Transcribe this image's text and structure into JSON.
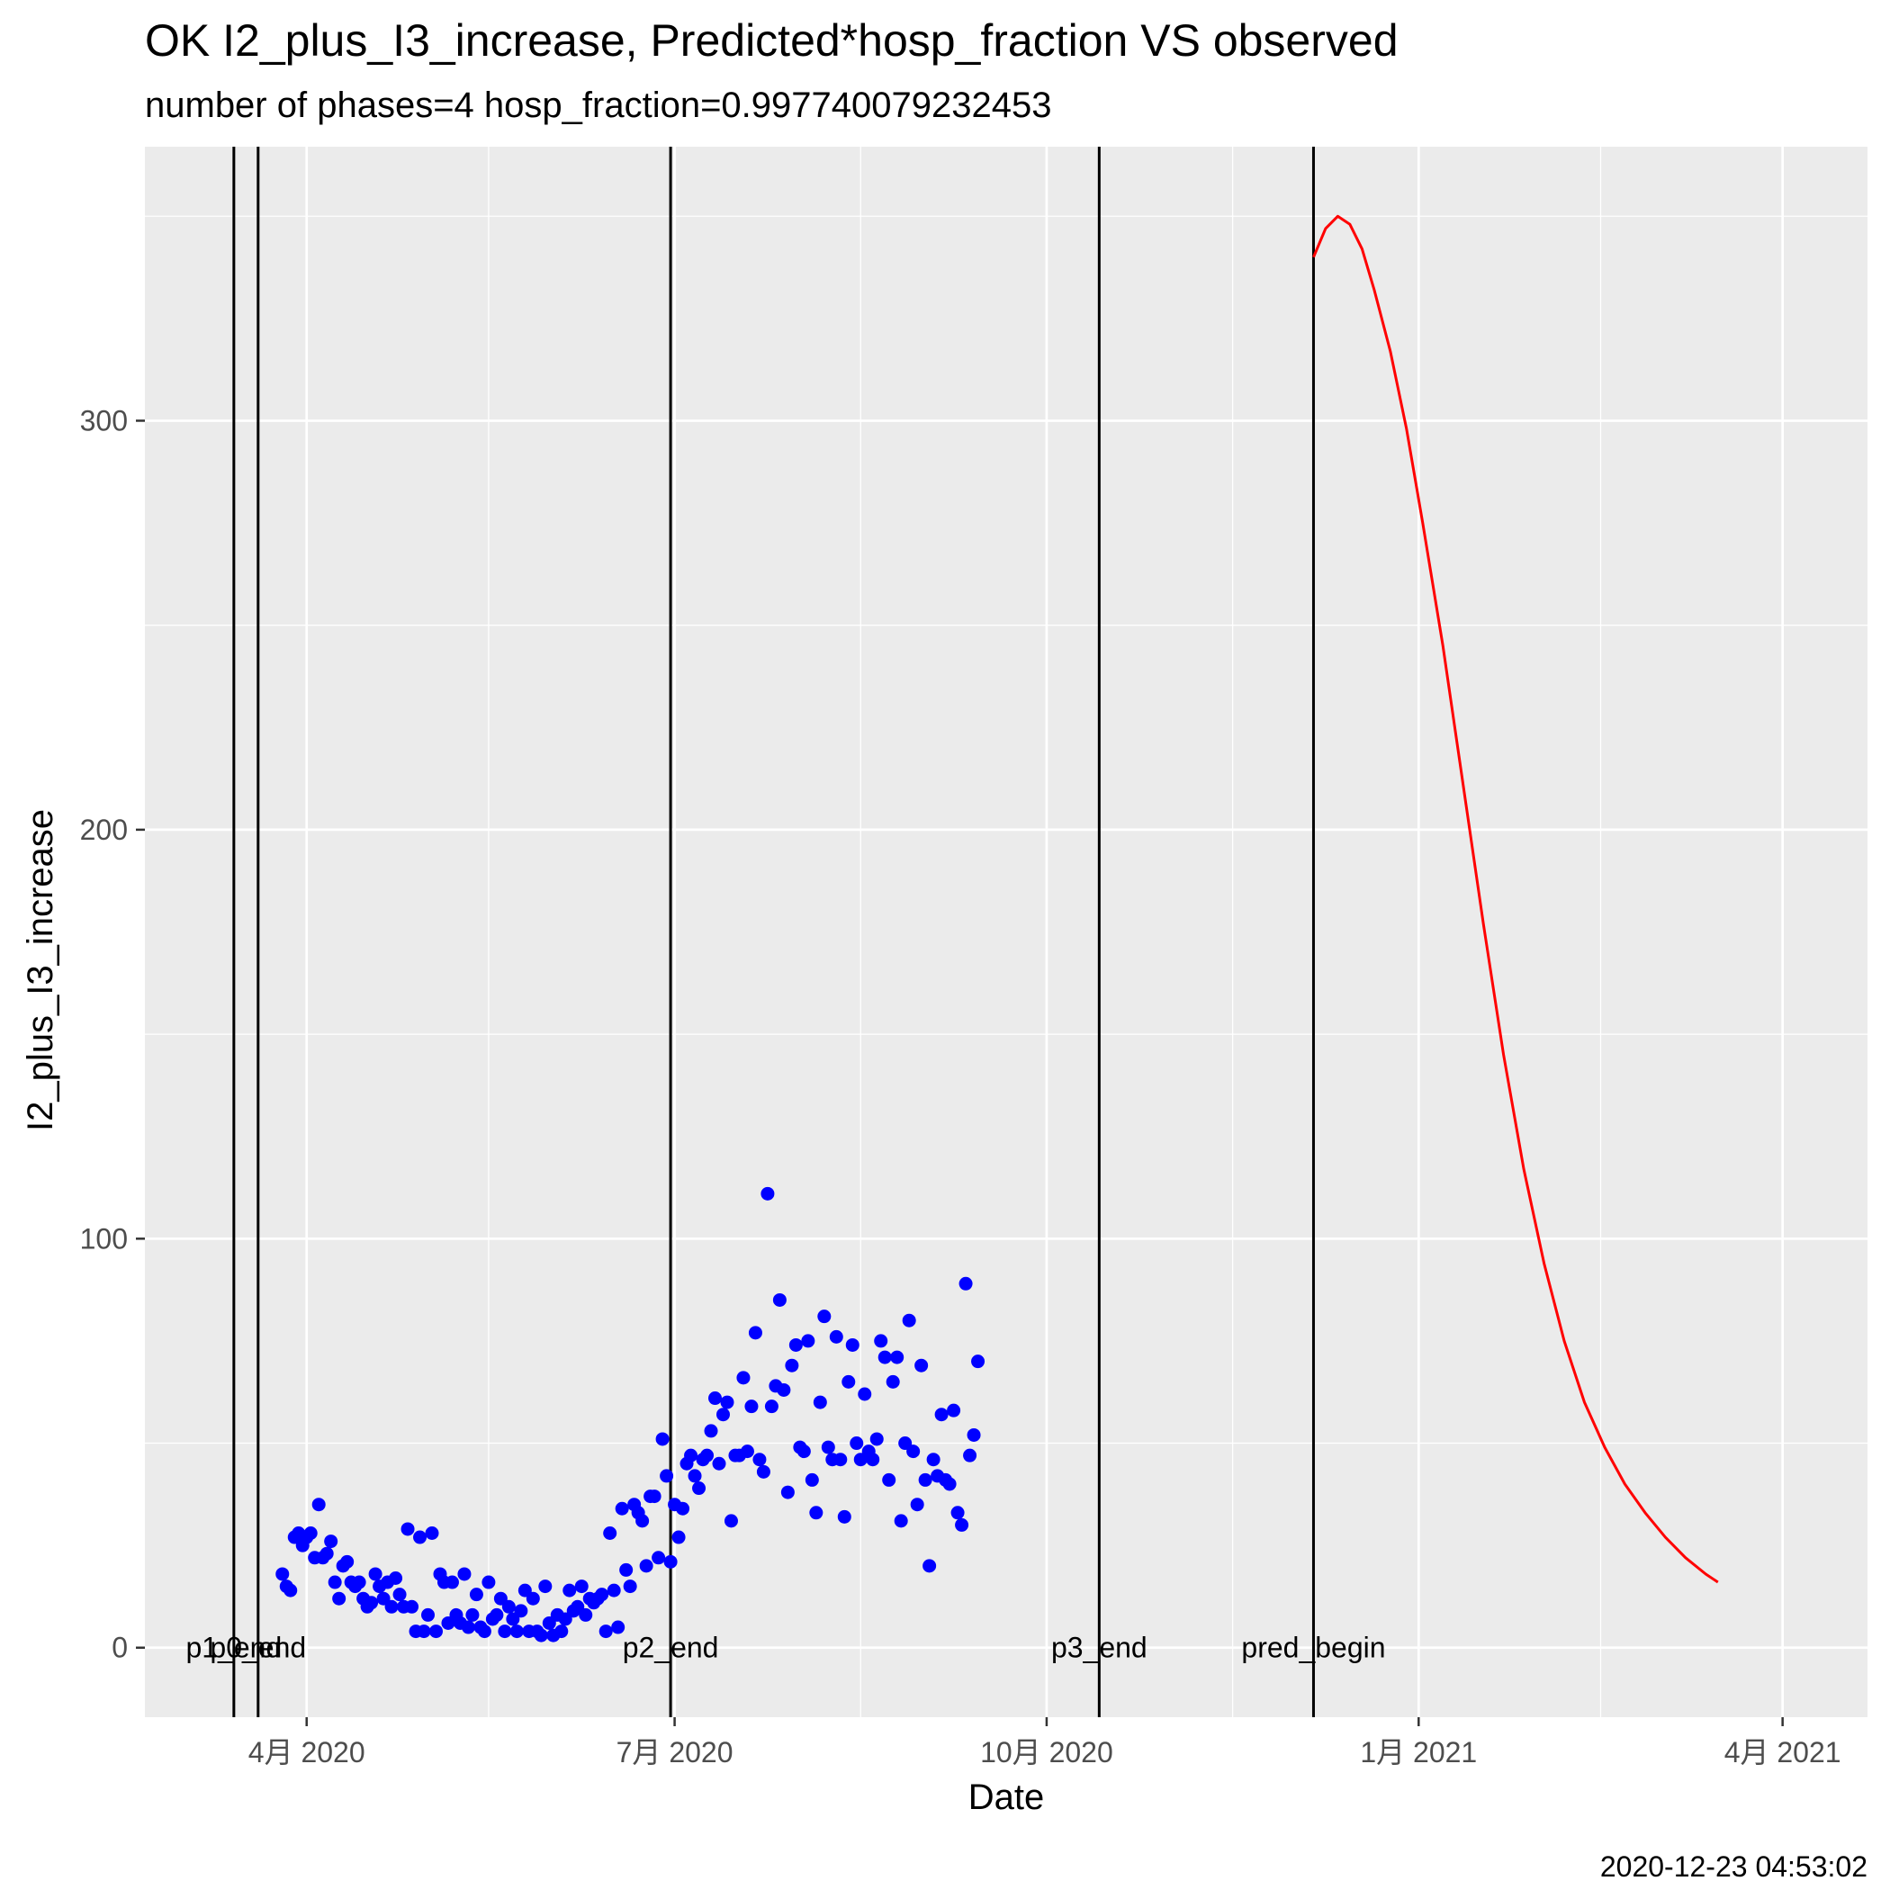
{
  "chart_data": {
    "type": "scatter",
    "title": "OK I2_plus_I3_increase, Predicted*hosp_fraction VS observed",
    "subtitle": "number of phases=4   hosp_fraction=0.997740079232453",
    "xlabel": "Date",
    "ylabel": "I2_plus_I3_increase",
    "caption": "2020-12-23 04:53:02",
    "xlim": [
      "2020-02-21",
      "2021-04-22"
    ],
    "ylim": [
      -17,
      367
    ],
    "x_ticks": [
      {
        "date": "2020-04-01",
        "label": "4月 2020"
      },
      {
        "date": "2020-07-01",
        "label": "7月 2020"
      },
      {
        "date": "2020-10-01",
        "label": "10月 2020"
      },
      {
        "date": "2021-01-01",
        "label": "1月 2021"
      },
      {
        "date": "2021-04-01",
        "label": "4月 2021"
      }
    ],
    "x_minor": [
      "2020-05-16",
      "2020-08-16",
      "2020-11-16",
      "2021-02-15"
    ],
    "y_ticks": [
      0,
      100,
      200,
      300
    ],
    "y_minor": [
      50,
      150,
      250,
      350
    ],
    "grid": true,
    "phase_lines": [
      {
        "date": "2020-03-14",
        "label": "p1_end"
      },
      {
        "date": "2020-03-20",
        "label": "p0_end"
      },
      {
        "date": "2020-06-30",
        "label": "p2_end"
      },
      {
        "date": "2020-10-14",
        "label": "p3_end"
      },
      {
        "date": "2020-12-06",
        "label": "pred_begin"
      }
    ],
    "series": [
      {
        "type": "scatter",
        "color": "#0000ff",
        "points": [
          [
            "2020-03-26",
            18
          ],
          [
            "2020-03-27",
            15
          ],
          [
            "2020-03-28",
            14
          ],
          [
            "2020-03-29",
            27
          ],
          [
            "2020-03-30",
            28
          ],
          [
            "2020-03-31",
            25
          ],
          [
            "2020-04-01",
            27
          ],
          [
            "2020-04-02",
            28
          ],
          [
            "2020-04-03",
            22
          ],
          [
            "2020-04-04",
            35
          ],
          [
            "2020-04-05",
            22
          ],
          [
            "2020-04-06",
            23
          ],
          [
            "2020-04-07",
            26
          ],
          [
            "2020-04-08",
            16
          ],
          [
            "2020-04-09",
            12
          ],
          [
            "2020-04-10",
            20
          ],
          [
            "2020-04-11",
            21
          ],
          [
            "2020-04-12",
            16
          ],
          [
            "2020-04-13",
            15
          ],
          [
            "2020-04-14",
            16
          ],
          [
            "2020-04-15",
            12
          ],
          [
            "2020-04-16",
            10
          ],
          [
            "2020-04-17",
            11
          ],
          [
            "2020-04-18",
            18
          ],
          [
            "2020-04-19",
            15
          ],
          [
            "2020-04-20",
            12
          ],
          [
            "2020-04-21",
            16
          ],
          [
            "2020-04-22",
            10
          ],
          [
            "2020-04-23",
            17
          ],
          [
            "2020-04-24",
            13
          ],
          [
            "2020-04-25",
            10
          ],
          [
            "2020-04-26",
            29
          ],
          [
            "2020-04-27",
            10
          ],
          [
            "2020-04-28",
            4
          ],
          [
            "2020-04-29",
            27
          ],
          [
            "2020-04-30",
            4
          ],
          [
            "2020-05-01",
            8
          ],
          [
            "2020-05-02",
            28
          ],
          [
            "2020-05-03",
            4
          ],
          [
            "2020-05-04",
            18
          ],
          [
            "2020-05-05",
            16
          ],
          [
            "2020-05-06",
            6
          ],
          [
            "2020-05-07",
            16
          ],
          [
            "2020-05-08",
            8
          ],
          [
            "2020-05-09",
            6
          ],
          [
            "2020-05-10",
            18
          ],
          [
            "2020-05-11",
            5
          ],
          [
            "2020-05-12",
            8
          ],
          [
            "2020-05-13",
            13
          ],
          [
            "2020-05-14",
            5
          ],
          [
            "2020-05-15",
            4
          ],
          [
            "2020-05-16",
            16
          ],
          [
            "2020-05-17",
            7
          ],
          [
            "2020-05-18",
            8
          ],
          [
            "2020-05-19",
            12
          ],
          [
            "2020-05-20",
            4
          ],
          [
            "2020-05-21",
            10
          ],
          [
            "2020-05-22",
            7
          ],
          [
            "2020-05-23",
            4
          ],
          [
            "2020-05-24",
            9
          ],
          [
            "2020-05-25",
            14
          ],
          [
            "2020-05-26",
            4
          ],
          [
            "2020-05-27",
            12
          ],
          [
            "2020-05-28",
            4
          ],
          [
            "2020-05-29",
            3
          ],
          [
            "2020-05-30",
            15
          ],
          [
            "2020-05-31",
            6
          ],
          [
            "2020-06-01",
            3
          ],
          [
            "2020-06-02",
            8
          ],
          [
            "2020-06-03",
            4
          ],
          [
            "2020-06-04",
            7
          ],
          [
            "2020-06-05",
            14
          ],
          [
            "2020-06-06",
            9
          ],
          [
            "2020-06-07",
            10
          ],
          [
            "2020-06-08",
            15
          ],
          [
            "2020-06-09",
            8
          ],
          [
            "2020-06-10",
            12
          ],
          [
            "2020-06-11",
            11
          ],
          [
            "2020-06-12",
            12
          ],
          [
            "2020-06-13",
            13
          ],
          [
            "2020-06-14",
            4
          ],
          [
            "2020-06-15",
            28
          ],
          [
            "2020-06-16",
            14
          ],
          [
            "2020-06-17",
            5
          ],
          [
            "2020-06-18",
            34
          ],
          [
            "2020-06-19",
            19
          ],
          [
            "2020-06-20",
            15
          ],
          [
            "2020-06-21",
            35
          ],
          [
            "2020-06-22",
            33
          ],
          [
            "2020-06-23",
            31
          ],
          [
            "2020-06-24",
            20
          ],
          [
            "2020-06-25",
            37
          ],
          [
            "2020-06-26",
            37
          ],
          [
            "2020-06-27",
            22
          ],
          [
            "2020-06-28",
            51
          ],
          [
            "2020-06-29",
            42
          ],
          [
            "2020-06-30",
            21
          ],
          [
            "2020-07-01",
            35
          ],
          [
            "2020-07-02",
            27
          ],
          [
            "2020-07-03",
            34
          ],
          [
            "2020-07-04",
            45
          ],
          [
            "2020-07-05",
            47
          ],
          [
            "2020-07-06",
            42
          ],
          [
            "2020-07-07",
            39
          ],
          [
            "2020-07-08",
            46
          ],
          [
            "2020-07-09",
            47
          ],
          [
            "2020-07-10",
            53
          ],
          [
            "2020-07-11",
            61
          ],
          [
            "2020-07-12",
            45
          ],
          [
            "2020-07-13",
            57
          ],
          [
            "2020-07-14",
            60
          ],
          [
            "2020-07-15",
            31
          ],
          [
            "2020-07-16",
            47
          ],
          [
            "2020-07-17",
            47
          ],
          [
            "2020-07-18",
            66
          ],
          [
            "2020-07-19",
            48
          ],
          [
            "2020-07-20",
            59
          ],
          [
            "2020-07-21",
            77
          ],
          [
            "2020-07-22",
            46
          ],
          [
            "2020-07-23",
            43
          ],
          [
            "2020-07-24",
            111
          ],
          [
            "2020-07-25",
            59
          ],
          [
            "2020-07-26",
            64
          ],
          [
            "2020-07-27",
            85
          ],
          [
            "2020-07-28",
            63
          ],
          [
            "2020-07-29",
            38
          ],
          [
            "2020-07-30",
            69
          ],
          [
            "2020-07-31",
            74
          ],
          [
            "2020-08-01",
            49
          ],
          [
            "2020-08-02",
            48
          ],
          [
            "2020-08-03",
            75
          ],
          [
            "2020-08-04",
            41
          ],
          [
            "2020-08-05",
            33
          ],
          [
            "2020-08-06",
            60
          ],
          [
            "2020-08-07",
            81
          ],
          [
            "2020-08-08",
            49
          ],
          [
            "2020-08-09",
            46
          ],
          [
            "2020-08-10",
            76
          ],
          [
            "2020-08-11",
            46
          ],
          [
            "2020-08-12",
            32
          ],
          [
            "2020-08-13",
            65
          ],
          [
            "2020-08-14",
            74
          ],
          [
            "2020-08-15",
            50
          ],
          [
            "2020-08-16",
            46
          ],
          [
            "2020-08-17",
            62
          ],
          [
            "2020-08-18",
            48
          ],
          [
            "2020-08-19",
            46
          ],
          [
            "2020-08-20",
            51
          ],
          [
            "2020-08-21",
            75
          ],
          [
            "2020-08-22",
            71
          ],
          [
            "2020-08-23",
            41
          ],
          [
            "2020-08-24",
            65
          ],
          [
            "2020-08-25",
            71
          ],
          [
            "2020-08-26",
            31
          ],
          [
            "2020-08-27",
            50
          ],
          [
            "2020-08-28",
            80
          ],
          [
            "2020-08-29",
            48
          ],
          [
            "2020-08-30",
            35
          ],
          [
            "2020-08-31",
            69
          ],
          [
            "2020-09-01",
            41
          ],
          [
            "2020-09-02",
            20
          ],
          [
            "2020-09-03",
            46
          ],
          [
            "2020-09-04",
            42
          ],
          [
            "2020-09-05",
            57
          ],
          [
            "2020-09-06",
            41
          ],
          [
            "2020-09-07",
            40
          ],
          [
            "2020-09-08",
            58
          ],
          [
            "2020-09-09",
            33
          ],
          [
            "2020-09-10",
            30
          ],
          [
            "2020-09-11",
            89
          ],
          [
            "2020-09-12",
            47
          ],
          [
            "2020-09-13",
            52
          ],
          [
            "2020-09-14",
            70
          ]
        ]
      },
      {
        "type": "line",
        "color": "#ff0000",
        "points": [
          [
            "2020-12-06",
            340
          ],
          [
            "2020-12-09",
            347
          ],
          [
            "2020-12-12",
            350
          ],
          [
            "2020-12-15",
            348
          ],
          [
            "2020-12-18",
            342
          ],
          [
            "2020-12-21",
            332
          ],
          [
            "2020-12-25",
            317
          ],
          [
            "2020-12-29",
            298
          ],
          [
            "2021-01-02",
            275
          ],
          [
            "2021-01-07",
            245
          ],
          [
            "2021-01-12",
            211
          ],
          [
            "2021-01-17",
            177
          ],
          [
            "2021-01-22",
            145
          ],
          [
            "2021-01-27",
            117
          ],
          [
            "2021-02-01",
            94
          ],
          [
            "2021-02-06",
            75
          ],
          [
            "2021-02-11",
            60
          ],
          [
            "2021-02-16",
            49
          ],
          [
            "2021-02-21",
            40
          ],
          [
            "2021-02-26",
            33
          ],
          [
            "2021-03-03",
            27
          ],
          [
            "2021-03-08",
            22
          ],
          [
            "2021-03-13",
            18
          ],
          [
            "2021-03-16",
            16
          ]
        ]
      }
    ]
  }
}
